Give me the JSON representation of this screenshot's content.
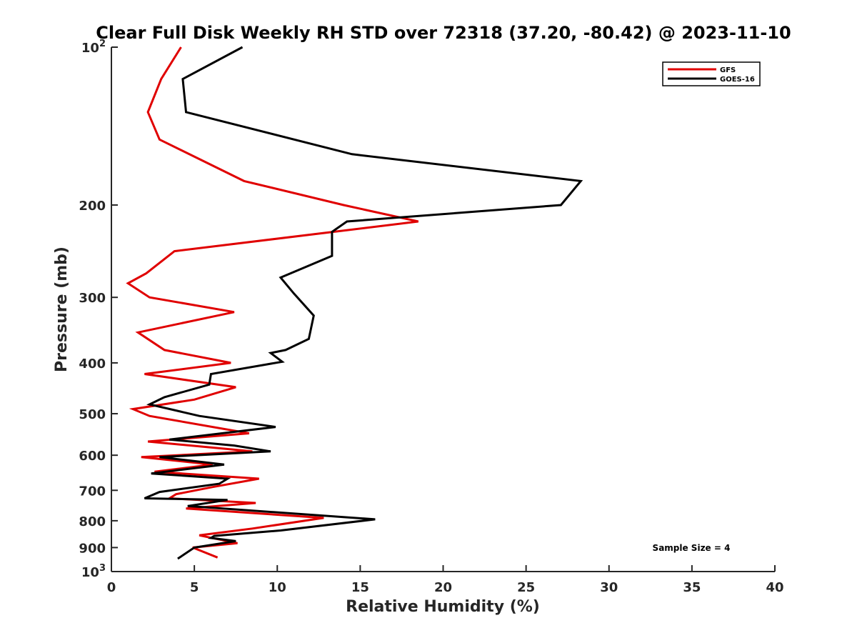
{
  "chart_data": {
    "type": "line",
    "title": "Clear Full Disk Weekly RH STD over 72318 (37.20, -80.42) @ 2023-11-10",
    "xlabel": "Relative Humidity (%)",
    "ylabel": "Pressure (mb)",
    "xlim": [
      0,
      40
    ],
    "ylim": [
      100,
      1000
    ],
    "y_scale": "log",
    "y_reversed": true,
    "xticks": [
      0,
      5,
      10,
      15,
      20,
      25,
      30,
      35,
      40
    ],
    "xtick_labels": [
      "0",
      "5",
      "10",
      "15",
      "20",
      "25",
      "30",
      "35",
      "40"
    ],
    "yticks": [
      {
        "value": 100,
        "label": "10",
        "sup": "2"
      },
      {
        "value": 200,
        "label": "200",
        "sup": ""
      },
      {
        "value": 300,
        "label": "300",
        "sup": ""
      },
      {
        "value": 400,
        "label": "400",
        "sup": ""
      },
      {
        "value": 500,
        "label": "500",
        "sup": ""
      },
      {
        "value": 600,
        "label": "600",
        "sup": ""
      },
      {
        "value": 700,
        "label": "700",
        "sup": ""
      },
      {
        "value": 800,
        "label": "800",
        "sup": ""
      },
      {
        "value": 900,
        "label": "900",
        "sup": ""
      },
      {
        "value": 1000,
        "label": "10",
        "sup": "3"
      }
    ],
    "grid": false,
    "legend_position": "top-right",
    "annotation": "Sample Size = 4",
    "series": [
      {
        "name": "GFS",
        "color": "#e00000",
        "x": [
          4.2,
          3.0,
          2.2,
          2.9,
          8.0,
          14.0,
          18.5,
          3.8,
          2.1,
          1.0,
          2.3,
          7.4,
          1.6,
          3.2,
          7.2,
          2.0,
          7.5,
          5.0,
          1.3,
          2.3,
          8.3,
          2.2,
          8.5,
          1.8,
          6.1,
          2.6,
          8.9,
          6.1,
          3.9,
          3.5,
          8.7,
          4.5,
          12.8,
          8.5,
          5.3,
          7.6,
          4.9,
          6.4
        ],
        "y": [
          100,
          115,
          133,
          150,
          180,
          200,
          215,
          245,
          270,
          282,
          300,
          320,
          350,
          378,
          400,
          420,
          445,
          470,
          490,
          505,
          545,
          565,
          590,
          605,
          625,
          645,
          665,
          690,
          712,
          725,
          740,
          758,
          790,
          828,
          853,
          883,
          900,
          940
        ]
      },
      {
        "name": "GOES-16",
        "color": "#000000",
        "x": [
          7.9,
          4.3,
          4.5,
          14.5,
          28.3,
          27.1,
          14.2,
          13.3,
          13.3,
          10.2,
          11.0,
          12.2,
          11.9,
          10.5,
          9.6,
          10.3,
          6.0,
          5.9,
          3.2,
          2.3,
          5.3,
          9.9,
          3.5,
          7.4,
          9.6,
          2.9,
          6.8,
          2.4,
          7.0,
          6.5,
          2.9,
          2.0,
          7.0,
          4.6,
          15.9,
          10.2,
          6.2,
          6.0,
          7.5,
          5.0,
          4.0
        ],
        "y": [
          100,
          115,
          133,
          160,
          180,
          200,
          215,
          225,
          250,
          275,
          295,
          325,
          360,
          378,
          383,
          398,
          420,
          440,
          465,
          480,
          505,
          530,
          560,
          575,
          590,
          605,
          625,
          650,
          665,
          680,
          705,
          725,
          730,
          750,
          795,
          835,
          855,
          863,
          875,
          900,
          945
        ]
      }
    ]
  }
}
